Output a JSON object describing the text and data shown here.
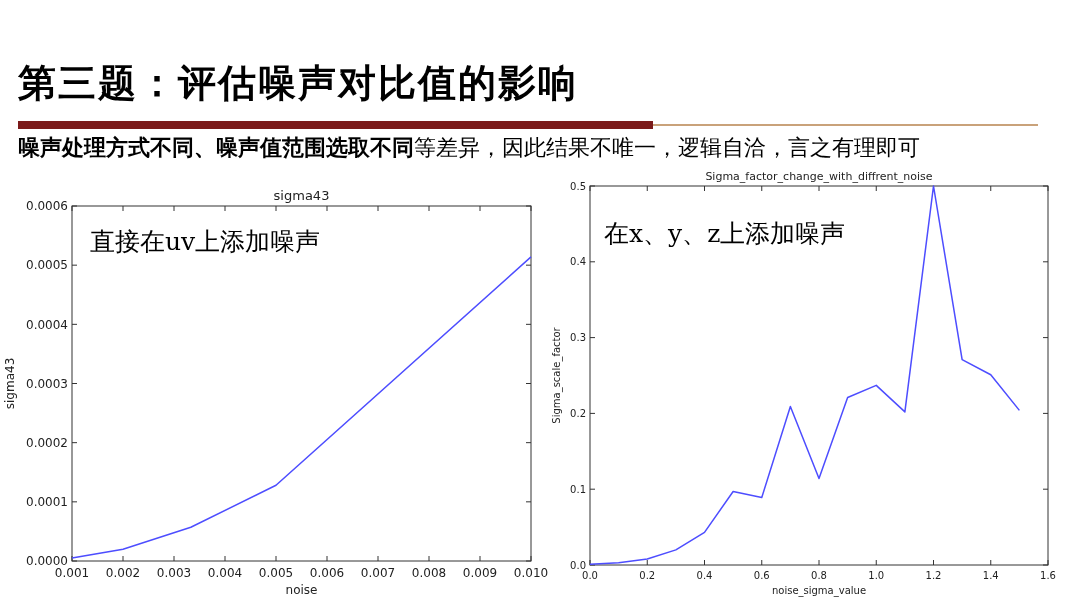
{
  "chart_data": [
    {
      "type": "other",
      "title": "第三题：评估噪声对比值的影响",
      "annotations": [
        "噪声处理方式不同、噪声值范围选取不同",
        "等差异，因此结果不唯一，逻辑自洽，言之有理即可"
      ]
    },
    {
      "type": "line",
      "title": "sigma43",
      "xlabel": "noise",
      "ylabel": "sigma43",
      "annotations": [
        "直接在uv上添加噪声"
      ],
      "x": [
        0.001,
        0.002,
        0.00333,
        0.005,
        0.01
      ],
      "series": [
        {
          "color": "#4d4dff",
          "values": [
            5e-06,
            2e-05,
            5.7e-05,
            0.000128,
            0.000514
          ]
        }
      ],
      "xlim": [
        0.001,
        0.01
      ],
      "ylim": [
        0,
        0.0006
      ],
      "xticks": [
        0.001,
        0.002,
        0.003,
        0.004,
        0.005,
        0.006,
        0.007,
        0.008,
        0.009,
        {
          "value": 0.01,
          "label": "0.010"
        }
      ],
      "yticks": [
        {
          "value": 0,
          "label": "0.0000"
        },
        {
          "value": 0.0001,
          "label": "0.0001"
        },
        {
          "value": 0.0002,
          "label": "0.0002"
        },
        {
          "value": 0.0003,
          "label": "0.0003"
        },
        {
          "value": 0.0004,
          "label": "0.0004"
        },
        {
          "value": 0.0005,
          "label": "0.0005"
        },
        {
          "value": 0.0006,
          "label": "0.0006"
        }
      ]
    },
    {
      "type": "line",
      "title": "Sigma_factor_change_with_diffrent_noise",
      "xlabel": "noise_sigma_value",
      "ylabel": "Sigma_scale_factor",
      "annotations": [
        "在x、y、z上添加噪声"
      ],
      "x": [
        0,
        0.1,
        0.2,
        0.3,
        0.4,
        0.5,
        0.6,
        0.7,
        0.8,
        0.9,
        1.0,
        1.1,
        1.2,
        1.3,
        1.4,
        1.5
      ],
      "series": [
        {
          "color": "#4d4dff",
          "values": [
            0.001,
            0.003,
            0.008,
            0.02,
            0.043,
            0.097,
            0.089,
            0.209,
            0.114,
            0.221,
            0.237,
            0.202,
            0.5,
            0.271,
            0.251,
            0.204
          ]
        }
      ],
      "xlim": [
        0,
        1.6
      ],
      "ylim": [
        0,
        0.5
      ],
      "xticks": [
        {
          "value": 0,
          "label": "0.0"
        },
        0.2,
        0.4,
        0.6,
        0.8,
        {
          "value": 1,
          "label": "1.0"
        },
        1.2,
        1.4,
        1.6
      ],
      "yticks": [
        {
          "value": 0,
          "label": "0.0"
        },
        0.1,
        0.2,
        0.3,
        0.4,
        0.5
      ]
    }
  ]
}
